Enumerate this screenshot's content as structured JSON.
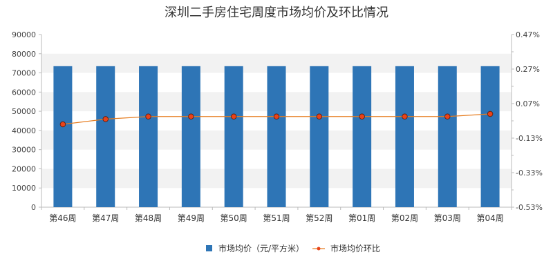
{
  "chart_data": {
    "type": "bar",
    "title": "深圳二手房住宅周度市场均价及环比情况",
    "categories": [
      "第46周",
      "第47周",
      "第48周",
      "第49周",
      "第50周",
      "第51周",
      "第52周",
      "第01周",
      "第02周",
      "第03周",
      "第04周"
    ],
    "series": [
      {
        "name": "市场均价（元/平方米）",
        "type": "bar",
        "axis": "left",
        "color": "#2e75b6",
        "values": [
          73500,
          73500,
          73500,
          73500,
          73500,
          73500,
          73500,
          73500,
          73500,
          73500,
          73500
        ]
      },
      {
        "name": "市场均价环比",
        "type": "line",
        "axis": "right",
        "color": "#e67e22",
        "marker_color": "#e8431a",
        "values": [
          -0.05,
          -0.02,
          -0.005,
          -0.005,
          -0.005,
          -0.005,
          -0.005,
          -0.005,
          -0.005,
          -0.005,
          0.01
        ]
      }
    ],
    "y_left": {
      "ylim": [
        0,
        90000
      ],
      "ticks": [
        0,
        10000,
        20000,
        30000,
        40000,
        50000,
        60000,
        70000,
        80000,
        90000
      ],
      "tick_labels": [
        "0",
        "10000",
        "20000",
        "30000",
        "40000",
        "50000",
        "60000",
        "70000",
        "80000",
        "90000"
      ]
    },
    "y_right": {
      "ylim": [
        -0.53,
        0.47
      ],
      "ticks": [
        -0.53,
        -0.33,
        -0.13,
        0.07,
        0.27,
        0.47
      ],
      "tick_labels": [
        "-0.53%",
        "-0.33%",
        "-0.13%",
        "0.07%",
        "0.27%",
        "0.47%"
      ]
    },
    "grid": "horizontal-banded",
    "legend_position": "bottom"
  }
}
